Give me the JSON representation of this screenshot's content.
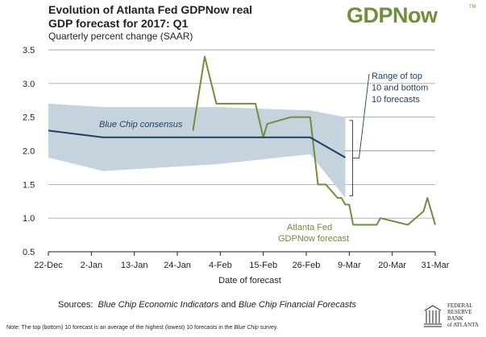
{
  "header": {
    "title_line1": "Evolution of Atlanta Fed GDPNow real",
    "title_line2": "GDP forecast for 2017: Q1",
    "subtitle": "Quarterly percent change (SAAR)",
    "logo": "GDPNow",
    "logo_tm": "TM"
  },
  "footer": {
    "sources_prefix": "Sources:",
    "sources_italic1": "Blue Chip Economic Indicators",
    "sources_and": "and",
    "sources_italic2": "Blue Chip Financial Forecasts",
    "note_prefix": "Note:  The top (bottom) 10 forecast is an average of the highest (lowest) 10 forecasts in the",
    "note_italic": "Blue Chip",
    "note_suffix": "survey.",
    "bank_name": [
      "FEDERAL",
      "RESERVE",
      "BANK",
      "of ATLANTA"
    ]
  },
  "colors": {
    "gdpnow": "#6f8f3a",
    "bluechip": "#1f3f5f",
    "band": "#c4d3de",
    "grid": "#8a8a8a"
  },
  "chart_data": {
    "type": "line",
    "title": "Evolution of Atlanta Fed GDPNow real GDP forecast for 2017: Q1",
    "subtitle": "Quarterly percent change (SAAR)",
    "xlabel": "Date of forecast",
    "ylabel": "",
    "x_ticks": [
      "22-Dec",
      "2-Jan",
      "13-Jan",
      "24-Jan",
      "4-Feb",
      "15-Feb",
      "26-Feb",
      "9-Mar",
      "20-Mar",
      "31-Mar"
    ],
    "y_ticks": [
      "0.5",
      "1.0",
      "1.5",
      "2.0",
      "2.5",
      "3.0",
      "3.5"
    ],
    "ylim": [
      0.5,
      3.5
    ],
    "xlim": [
      "2016-12-22",
      "2017-03-31"
    ],
    "grid": true,
    "series": [
      {
        "name": "Atlanta Fed GDPNow forecast",
        "x": [
          "2017-01-28",
          "2017-01-31",
          "2017-02-03",
          "2017-02-08",
          "2017-02-10",
          "2017-02-13",
          "2017-02-15",
          "2017-02-16",
          "2017-02-22",
          "2017-02-24",
          "2017-02-27",
          "2017-02-28",
          "2017-03-01",
          "2017-03-03",
          "2017-03-06",
          "2017-03-07",
          "2017-03-08",
          "2017-03-09",
          "2017-03-10",
          "2017-03-16",
          "2017-03-17",
          "2017-03-24",
          "2017-03-28",
          "2017-03-29",
          "2017-03-31"
        ],
        "y": [
          2.3,
          3.4,
          2.7,
          2.7,
          2.7,
          2.7,
          2.2,
          2.4,
          2.5,
          2.5,
          2.5,
          2.0,
          1.5,
          1.5,
          1.3,
          1.3,
          1.2,
          1.2,
          0.9,
          0.9,
          1.0,
          0.9,
          1.1,
          1.3,
          0.9
        ]
      },
      {
        "name": "Blue Chip consensus",
        "x": [
          "2016-12-22",
          "2017-01-05",
          "2017-02-03",
          "2017-02-27",
          "2017-03-08"
        ],
        "y": [
          2.3,
          2.2,
          2.2,
          2.2,
          1.9
        ]
      }
    ],
    "band": {
      "name": "Range of top 10 and bottom 10 forecasts",
      "x": [
        "2016-12-22",
        "2017-01-05",
        "2017-02-03",
        "2017-02-27",
        "2017-03-08"
      ],
      "top": [
        2.7,
        2.65,
        2.65,
        2.6,
        2.5
      ],
      "bottom": [
        1.9,
        1.7,
        1.8,
        1.95,
        1.3
      ]
    },
    "annotations": {
      "band_label": [
        "Range of top",
        "10 and bottom",
        "10 forecasts"
      ],
      "bluechip_label": "Blue Chip consensus",
      "gdpnow_label": [
        "Atlanta Fed",
        "GDPNow forecast"
      ]
    }
  }
}
